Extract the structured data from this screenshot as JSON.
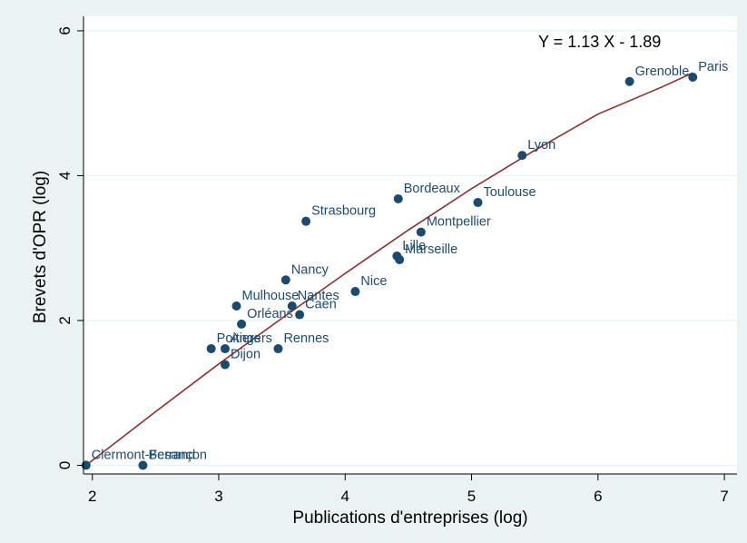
{
  "chart_data": {
    "type": "scatter",
    "title": "",
    "annotation": "Y = 1.13 X - 1.89",
    "xlabel": "Publications d'entreprises (log)",
    "ylabel": "Brevets d'OPR (log)",
    "xlim": [
      1.93,
      7.1
    ],
    "ylim": [
      -0.12,
      6.2
    ],
    "xticks": [
      2,
      3,
      4,
      5,
      6,
      7
    ],
    "yticks": [
      0,
      2,
      4,
      6
    ],
    "grid": true,
    "points": [
      {
        "label": "Paris",
        "x": 6.75,
        "y": 5.36
      },
      {
        "label": "Grenoble",
        "x": 6.25,
        "y": 5.3
      },
      {
        "label": "Lyon",
        "x": 5.4,
        "y": 4.28
      },
      {
        "label": "Toulouse",
        "x": 5.05,
        "y": 3.63
      },
      {
        "label": "Bordeaux",
        "x": 4.42,
        "y": 3.68
      },
      {
        "label": "Montpellier",
        "x": 4.6,
        "y": 3.22
      },
      {
        "label": "Lille",
        "x": 4.41,
        "y": 2.89
      },
      {
        "label": "Marseille",
        "x": 4.43,
        "y": 2.84
      },
      {
        "label": "Strasbourg",
        "x": 3.69,
        "y": 3.37
      },
      {
        "label": "Nice",
        "x": 4.08,
        "y": 2.4
      },
      {
        "label": "Nancy",
        "x": 3.53,
        "y": 2.56
      },
      {
        "label": "Mulhouse",
        "x": 3.14,
        "y": 2.2
      },
      {
        "label": "Nantes",
        "x": 3.58,
        "y": 2.2
      },
      {
        "label": "Caen",
        "x": 3.64,
        "y": 2.08
      },
      {
        "label": "Orléans",
        "x": 3.18,
        "y": 1.95
      },
      {
        "label": "Poitiers",
        "x": 2.94,
        "y": 1.61
      },
      {
        "label": "Angers",
        "x": 3.05,
        "y": 1.61
      },
      {
        "label": "Rennes",
        "x": 3.47,
        "y": 1.61
      },
      {
        "label": "Dijon",
        "x": 3.05,
        "y": 1.39
      },
      {
        "label": "Clermont-Ferrand",
        "x": 1.95,
        "y": 0
      },
      {
        "label": "Besançon",
        "x": 2.4,
        "y": 0
      }
    ],
    "fit_line": {
      "x": [
        1.95,
        2.5,
        3.0,
        3.5,
        4.0,
        4.5,
        5.0,
        5.5,
        6.0,
        6.5,
        6.75
      ],
      "y": [
        0.0,
        0.74,
        1.4,
        2.03,
        2.65,
        3.25,
        3.82,
        4.35,
        4.85,
        5.22,
        5.42
      ]
    }
  }
}
